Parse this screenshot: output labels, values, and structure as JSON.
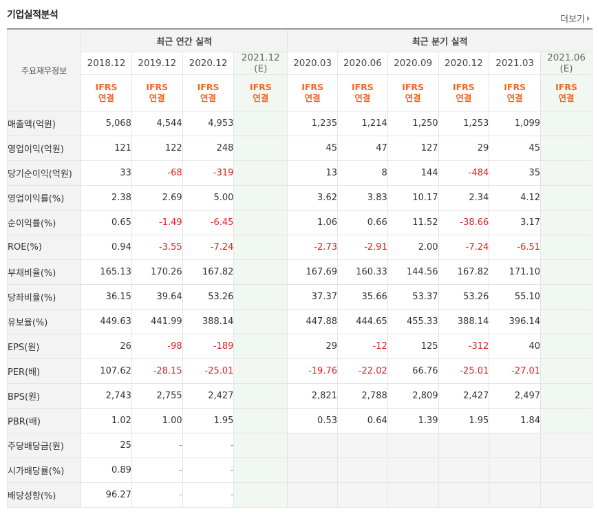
{
  "title": "기업실적분석",
  "more_label": "더보기",
  "header": {
    "row_label": "주요재무정보",
    "annual_group": "최근 연간 실적",
    "quarter_group": "최근 분기 실적",
    "annual_periods": [
      "2018.12",
      "2019.12",
      "2020.12",
      "2021.12"
    ],
    "annual_estimate_flags": [
      false,
      false,
      false,
      true
    ],
    "quarter_periods": [
      "2020.03",
      "2020.06",
      "2020.09",
      "2020.12",
      "2021.03",
      "2021.06"
    ],
    "quarter_estimate_flags": [
      false,
      false,
      false,
      false,
      false,
      true
    ],
    "estimate_mark": "(E)",
    "ifrs_line1": "IFRS",
    "ifrs_line2": "연결"
  },
  "rows": [
    {
      "label": "매출액(억원)",
      "annual": [
        "5,068",
        "4,544",
        "4,953",
        ""
      ],
      "quarter": [
        "1,235",
        "1,214",
        "1,250",
        "1,253",
        "1,099",
        ""
      ]
    },
    {
      "label": "영업이익(억원)",
      "annual": [
        "121",
        "122",
        "248",
        ""
      ],
      "quarter": [
        "45",
        "47",
        "127",
        "29",
        "45",
        ""
      ]
    },
    {
      "label": "당기순이익(억원)",
      "annual": [
        "33",
        "-68",
        "-319",
        ""
      ],
      "quarter": [
        "13",
        "8",
        "144",
        "-484",
        "35",
        ""
      ]
    },
    {
      "label": "영업이익률(%)",
      "annual": [
        "2.38",
        "2.69",
        "5.00",
        ""
      ],
      "quarter": [
        "3.62",
        "3.83",
        "10.17",
        "2.34",
        "4.12",
        ""
      ]
    },
    {
      "label": "순이익률(%)",
      "annual": [
        "0.65",
        "-1.49",
        "-6.45",
        ""
      ],
      "quarter": [
        "1.06",
        "0.66",
        "11.52",
        "-38.66",
        "3.17",
        ""
      ]
    },
    {
      "label": "ROE(%)",
      "annual": [
        "0.94",
        "-3.55",
        "-7.24",
        ""
      ],
      "quarter": [
        "-2.73",
        "-2.91",
        "2.00",
        "-7.24",
        "-6.51",
        ""
      ]
    },
    {
      "label": "부채비율(%)",
      "annual": [
        "165.13",
        "170.26",
        "167.82",
        ""
      ],
      "quarter": [
        "167.69",
        "160.33",
        "144.56",
        "167.82",
        "171.10",
        ""
      ]
    },
    {
      "label": "당좌비율(%)",
      "annual": [
        "36.15",
        "39.64",
        "53.26",
        ""
      ],
      "quarter": [
        "37.37",
        "35.66",
        "53.37",
        "53.26",
        "55.10",
        ""
      ]
    },
    {
      "label": "유보율(%)",
      "annual": [
        "449.63",
        "441.99",
        "388.14",
        ""
      ],
      "quarter": [
        "447.88",
        "444.65",
        "455.33",
        "388.14",
        "396.14",
        ""
      ]
    },
    {
      "label": "EPS(원)",
      "annual": [
        "26",
        "-98",
        "-189",
        ""
      ],
      "quarter": [
        "29",
        "-12",
        "125",
        "-312",
        "40",
        ""
      ]
    },
    {
      "label": "PER(배)",
      "annual": [
        "107.62",
        "-28.15",
        "-25.01",
        ""
      ],
      "quarter": [
        "-19.76",
        "-22.02",
        "66.76",
        "-25.01",
        "-27.01",
        ""
      ]
    },
    {
      "label": "BPS(원)",
      "annual": [
        "2,743",
        "2,755",
        "2,427",
        ""
      ],
      "quarter": [
        "2,821",
        "2,788",
        "2,809",
        "2,427",
        "2,497",
        ""
      ]
    },
    {
      "label": "PBR(배)",
      "annual": [
        "1.02",
        "1.00",
        "1.95",
        ""
      ],
      "quarter": [
        "0.53",
        "0.64",
        "1.39",
        "1.95",
        "1.84",
        ""
      ]
    },
    {
      "label": "주당배당금(원)",
      "annual": [
        "25",
        "-",
        "-",
        ""
      ],
      "quarter": null
    },
    {
      "label": "시가배당률(%)",
      "annual": [
        "0.89",
        "-",
        "-",
        ""
      ],
      "quarter": null
    },
    {
      "label": "배당성향(%)",
      "annual": [
        "96.27",
        "-",
        "-",
        ""
      ],
      "quarter": null
    }
  ],
  "group_breaks_after": [
    2,
    5,
    8,
    12
  ]
}
